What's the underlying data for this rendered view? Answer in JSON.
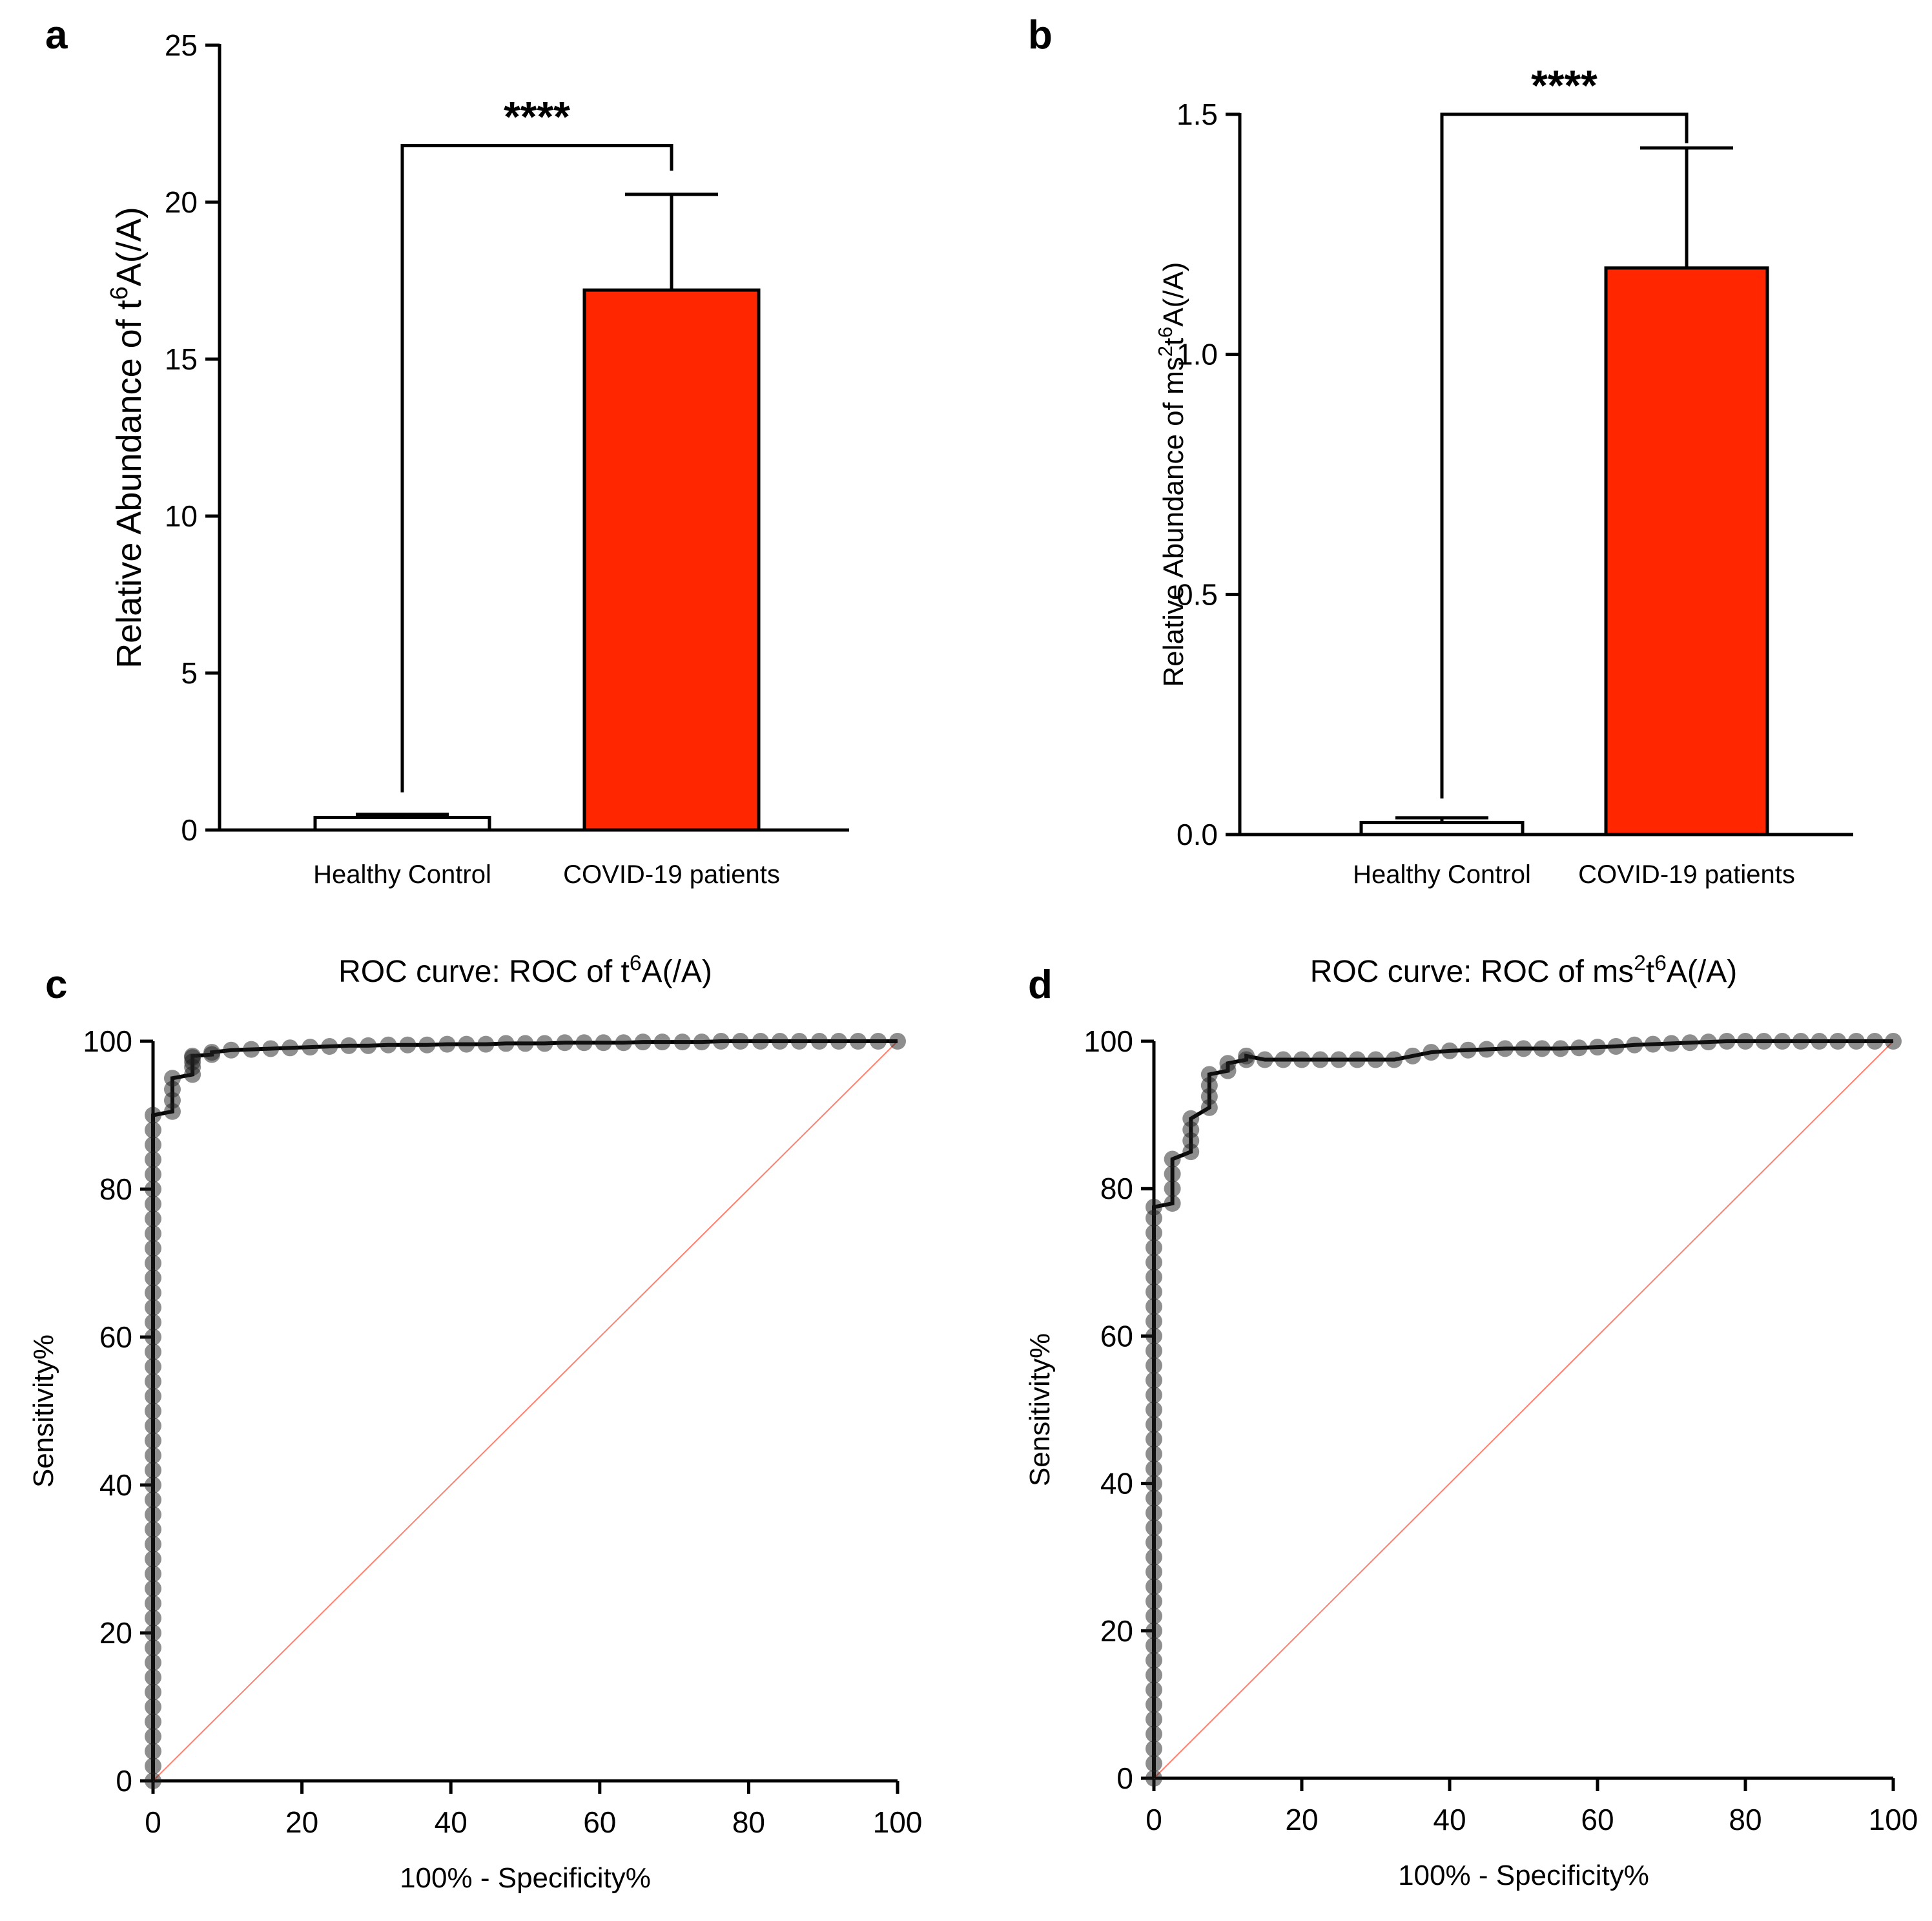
{
  "chart_data": [
    {
      "panel": "a",
      "type": "bar",
      "categories": [
        "Healthy Control",
        "COVID-19 patients"
      ],
      "values": [
        0.4,
        17.2
      ],
      "error_upper": [
        0.5,
        20.25
      ],
      "colors": [
        "#ffffff",
        "#ff2600"
      ],
      "ylim": [
        0,
        25
      ],
      "yticks": [
        "0",
        "5",
        "10",
        "15",
        "20",
        "25"
      ],
      "ylabel_pre": "Relative  Abundance of t",
      "ylabel_sup": "6",
      "ylabel_post": "A(/A)",
      "significance": "****",
      "bracket_left_top": 1.2,
      "bracket_y": 21.8,
      "bracket_right_top": 21.0
    },
    {
      "panel": "b",
      "type": "bar",
      "categories": [
        "Healthy Control",
        "COVID-19 patients"
      ],
      "values": [
        0.025,
        1.18
      ],
      "error_upper": [
        0.035,
        1.43
      ],
      "colors": [
        "#ffffff",
        "#ff2600"
      ],
      "ylim": [
        0,
        1.5
      ],
      "yticks": [
        "0.0",
        "0.5",
        "1.0",
        "1.5"
      ],
      "ylabel_pre": "Relative  Abundance of ms",
      "ylabel_sup": "2",
      "ylabel_mid": "t",
      "ylabel_sup2": "6",
      "ylabel_post": "A(/A)",
      "significance": "****",
      "bracket_left_top": 0.075,
      "bracket_y": 1.5,
      "bracket_right_top": 1.44
    },
    {
      "panel": "c",
      "type": "line",
      "title_pre": "ROC curve: ROC of t",
      "title_sup": "6",
      "title_post": "A(/A)",
      "xlabel": "100% - Specificity%",
      "ylabel": "Sensitivity%",
      "xlim": [
        0,
        100
      ],
      "ylim": [
        0,
        100
      ],
      "xticks": [
        "0",
        "20",
        "40",
        "60",
        "80",
        "100"
      ],
      "yticks": [
        "0",
        "20",
        "40",
        "60",
        "80",
        "100"
      ],
      "reference_line_color": "#ff7f6e",
      "series": [
        {
          "x": [
            0,
            0,
            0,
            0,
            0,
            0,
            0,
            0,
            0,
            0,
            0,
            0,
            0,
            0,
            0,
            0,
            0,
            0,
            0,
            0,
            0,
            0,
            0,
            0,
            0,
            0,
            0,
            0,
            0,
            0,
            0,
            0,
            0,
            0,
            0,
            0,
            0,
            0,
            0,
            0,
            0,
            0,
            0,
            0,
            0,
            0,
            2.6,
            2.6,
            2.6,
            2.6,
            5.3,
            5.3,
            5.3,
            5.3,
            5.3,
            7.9,
            7.9,
            10.5,
            13.2,
            15.8,
            18.4,
            21.1,
            23.7,
            26.3,
            28.9,
            31.6,
            34.2,
            36.8,
            39.5,
            42.1,
            44.7,
            47.4,
            50,
            52.6,
            55.3,
            57.9,
            60.5,
            63.2,
            65.8,
            68.4,
            71.1,
            73.7,
            76.3,
            78.9,
            81.6,
            84.2,
            86.8,
            89.5,
            92.1,
            94.7,
            97.4,
            100
          ],
          "y": [
            0,
            2,
            4,
            6,
            8,
            10,
            12,
            14,
            16,
            18,
            20,
            22,
            24,
            26,
            28,
            30,
            32,
            34,
            36,
            38,
            40,
            42,
            44,
            46,
            48,
            50,
            52,
            54,
            56,
            58,
            60,
            62,
            64,
            66,
            68,
            70,
            72,
            74,
            76,
            78,
            80,
            82,
            84,
            86,
            88,
            90,
            90.5,
            92,
            93.5,
            95,
            95.5,
            96.5,
            97.2,
            97.8,
            98,
            98.2,
            98.5,
            98.8,
            98.9,
            99,
            99.1,
            99.2,
            99.3,
            99.4,
            99.4,
            99.5,
            99.5,
            99.5,
            99.6,
            99.6,
            99.6,
            99.7,
            99.7,
            99.7,
            99.8,
            99.8,
            99.8,
            99.8,
            99.9,
            99.9,
            99.9,
            99.9,
            100,
            100,
            100,
            100,
            100,
            100,
            100,
            100,
            100,
            100
          ]
        }
      ]
    },
    {
      "panel": "d",
      "type": "line",
      "title_pre": "ROC curve: ROC of ms",
      "title_sup": "2",
      "title_mid": "t",
      "title_sup2": "6",
      "title_post": "A(/A)",
      "xlabel": "100% - Specificity%",
      "ylabel": "Sensitivity%",
      "xlim": [
        0,
        100
      ],
      "ylim": [
        0,
        100
      ],
      "xticks": [
        "0",
        "20",
        "40",
        "60",
        "80",
        "100"
      ],
      "yticks": [
        "0",
        "20",
        "40",
        "60",
        "80",
        "100"
      ],
      "reference_line_color": "#ff7f6e",
      "series": [
        {
          "x": [
            0,
            0,
            0,
            0,
            0,
            0,
            0,
            0,
            0,
            0,
            0,
            0,
            0,
            0,
            0,
            0,
            0,
            0,
            0,
            0,
            0,
            0,
            0,
            0,
            0,
            0,
            0,
            0,
            0,
            0,
            0,
            0,
            0,
            0,
            0,
            0,
            0,
            0,
            0,
            0,
            2.5,
            2.5,
            2.5,
            2.5,
            5,
            5,
            5,
            5,
            7.5,
            7.5,
            7.5,
            7.5,
            10,
            10,
            12.5,
            12.5,
            15,
            17.5,
            20,
            22.5,
            25,
            27.5,
            30,
            32.5,
            35,
            37.5,
            40,
            42.5,
            45,
            47.5,
            50,
            52.5,
            55,
            57.5,
            60,
            62.5,
            65,
            67.5,
            70,
            72.5,
            75,
            77.5,
            80,
            82.5,
            85,
            87.5,
            90,
            92.5,
            95,
            97.5,
            100
          ],
          "y": [
            0,
            2,
            4,
            6,
            8,
            10,
            12,
            14,
            16,
            18,
            20,
            22,
            24,
            26,
            28,
            30,
            32,
            34,
            36,
            38,
            40,
            42,
            44,
            46,
            48,
            50,
            52,
            54,
            56,
            58,
            60,
            62,
            64,
            66,
            68,
            70,
            72,
            74,
            76,
            77.5,
            78,
            80,
            82,
            84,
            85,
            86.5,
            88,
            89.5,
            91,
            92.5,
            94,
            95.5,
            96,
            97,
            97.5,
            98,
            97.5,
            97.5,
            97.5,
            97.5,
            97.5,
            97.5,
            97.5,
            97.5,
            98,
            98.5,
            98.7,
            98.8,
            98.9,
            99,
            99,
            99,
            99,
            99.1,
            99.2,
            99.3,
            99.5,
            99.6,
            99.7,
            99.8,
            99.9,
            100,
            100,
            100,
            100,
            100,
            100,
            100,
            100,
            100,
            100
          ]
        }
      ]
    }
  ]
}
